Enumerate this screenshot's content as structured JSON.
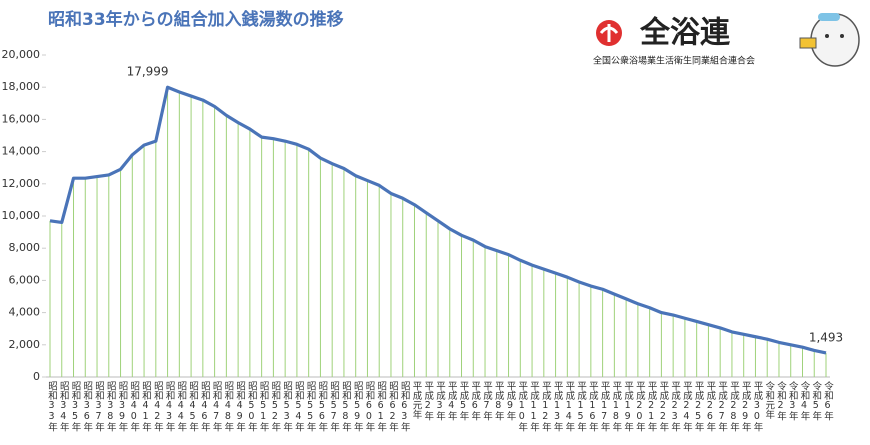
{
  "chart_data": {
    "type": "line",
    "title": "昭和33年からの組合加入銭湯数の推移",
    "logo_text": "全浴連",
    "organization": "全国公衆浴場業生活衛生同業組合連合会",
    "categories": [
      "昭和33年",
      "昭和34年",
      "昭和35年",
      "昭和36年",
      "昭和37年",
      "昭和38年",
      "昭和39年",
      "昭和40年",
      "昭和41年",
      "昭和42年",
      "昭和43年",
      "昭和44年",
      "昭和45年",
      "昭和46年",
      "昭和47年",
      "昭和48年",
      "昭和49年",
      "昭和50年",
      "昭和51年",
      "昭和52年",
      "昭和53年",
      "昭和54年",
      "昭和55年",
      "昭和56年",
      "昭和57年",
      "昭和58年",
      "昭和59年",
      "昭和60年",
      "昭和61年",
      "昭和62年",
      "昭和63年",
      "平成元年",
      "平成2年",
      "平成3年",
      "平成4年",
      "平成5年",
      "平成6年",
      "平成7年",
      "平成8年",
      "平成9年",
      "平成10年",
      "平成11年",
      "平成12年",
      "平成13年",
      "平成14年",
      "平成15年",
      "平成16年",
      "平成17年",
      "平成18年",
      "平成19年",
      "平成20年",
      "平成21年",
      "平成22年",
      "平成23年",
      "平成24年",
      "平成25年",
      "平成26年",
      "平成27年",
      "平成28年",
      "平成29年",
      "平成30年",
      "令和元年",
      "令和2年",
      "令和3年",
      "令和4年",
      "令和5年",
      "令和6年"
    ],
    "values": [
      9700,
      9600,
      12350,
      12350,
      12450,
      12550,
      12900,
      13800,
      14400,
      14650,
      17999,
      17700,
      17450,
      17200,
      16800,
      16250,
      15800,
      15400,
      14900,
      14800,
      14650,
      14450,
      14150,
      13600,
      13250,
      12950,
      12500,
      12200,
      11900,
      11400,
      11100,
      10700,
      10200,
      9700,
      9200,
      8800,
      8500,
      8100,
      7850,
      7600,
      7250,
      6950,
      6700,
      6450,
      6200,
      5900,
      5650,
      5450,
      5150,
      4850,
      4550,
      4300,
      4000,
      3850,
      3650,
      3450,
      3250,
      3050,
      2800,
      2650,
      2500,
      2350,
      2150,
      2000,
      1850,
      1650,
      1493
    ],
    "value_labels": [
      null,
      null,
      null,
      null,
      null,
      null,
      null,
      null,
      null,
      null,
      "17,999",
      null,
      null,
      null,
      null,
      null,
      null,
      null,
      null,
      null,
      null,
      null,
      null,
      null,
      null,
      null,
      null,
      null,
      null,
      null,
      null,
      null,
      null,
      null,
      null,
      null,
      null,
      null,
      null,
      null,
      null,
      null,
      null,
      null,
      null,
      null,
      null,
      null,
      null,
      null,
      null,
      null,
      null,
      null,
      null,
      null,
      null,
      null,
      null,
      null,
      null,
      null,
      null,
      null,
      null,
      null,
      "1,493"
    ],
    "color": "#4a74b8",
    "drop_line_color": "#9fd27a",
    "ylim": [
      0,
      20000
    ],
    "yticks": [
      0,
      {
        "value": 2000,
        "label": "2,000"
      },
      {
        "value": 4000,
        "label": "4,000"
      },
      {
        "value": 6000,
        "label": "6,000"
      },
      {
        "value": 8000,
        "label": "8,000"
      },
      {
        "value": 10000,
        "label": "10,000"
      },
      {
        "value": 12000,
        "label": "12,000"
      },
      {
        "value": 14000,
        "label": "14,000"
      },
      {
        "value": 16000,
        "label": "16,000"
      },
      {
        "value": 18000,
        "label": "18,000"
      },
      {
        "value": 20000,
        "label": "20,000"
      }
    ],
    "grid": false
  }
}
